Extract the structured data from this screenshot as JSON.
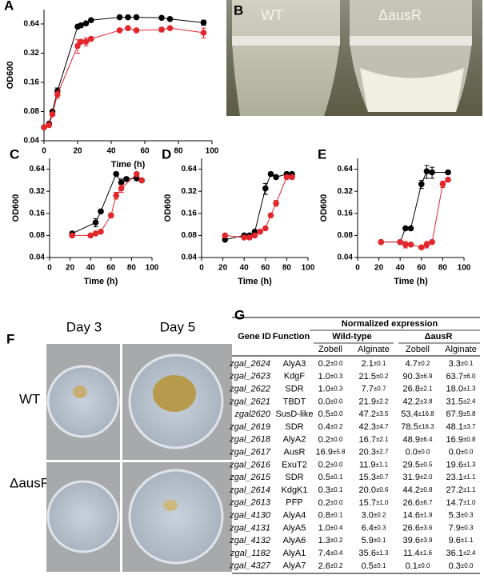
{
  "chart_data": [
    {
      "type": "line",
      "panel": "A",
      "xlabel": "Time (h)",
      "ylabel": "OD600",
      "xlim": [
        0,
        100
      ],
      "xticks": [
        0,
        20,
        40,
        60,
        80,
        100
      ],
      "ylim": [
        0.04,
        0.9
      ],
      "yticks": [
        0.04,
        0.08,
        0.16,
        0.32,
        0.64
      ],
      "yscale": "log",
      "series": [
        {
          "color": "#000000",
          "x": [
            0,
            3,
            5,
            8,
            20,
            22,
            25,
            28,
            45,
            50,
            55,
            70,
            75,
            95
          ],
          "values": [
            0.055,
            0.06,
            0.08,
            0.13,
            0.6,
            0.62,
            0.65,
            0.7,
            0.75,
            0.75,
            0.75,
            0.74,
            0.72,
            0.66
          ],
          "errors": [
            null,
            null,
            null,
            0.01,
            null,
            null,
            null,
            null,
            null,
            null,
            null,
            null,
            null,
            0.04
          ]
        },
        {
          "color": "#e3262b",
          "x": [
            0,
            3,
            5,
            8,
            20,
            22,
            25,
            28,
            45,
            50,
            55,
            70,
            75,
            95
          ],
          "values": [
            0.055,
            0.058,
            0.075,
            0.12,
            0.38,
            0.42,
            0.42,
            0.45,
            0.55,
            0.58,
            0.55,
            0.56,
            0.58,
            0.52
          ],
          "errors": [
            null,
            null,
            null,
            0.01,
            0.06,
            null,
            0.04,
            null,
            null,
            null,
            null,
            0.03,
            null,
            0.06
          ]
        }
      ]
    },
    {
      "type": "line",
      "panel": "C",
      "xlabel": "Time (h)",
      "ylabel": "OD600",
      "xlim": [
        0,
        100
      ],
      "xticks": [
        0,
        20,
        40,
        60,
        80,
        100
      ],
      "ylim": [
        0.04,
        0.9
      ],
      "yticks": [
        0.04,
        0.08,
        0.16,
        0.32,
        0.64
      ],
      "yscale": "log",
      "series": [
        {
          "color": "#000000",
          "x": [
            22,
            45,
            50,
            65,
            70,
            75,
            85,
            90
          ],
          "values": [
            0.085,
            0.12,
            0.17,
            0.55,
            0.42,
            0.47,
            0.48,
            0.45
          ],
          "errors": [
            null,
            0.015,
            null,
            null,
            0.05,
            null,
            null,
            null
          ]
        },
        {
          "color": "#e3262b",
          "x": [
            22,
            40,
            45,
            50,
            60,
            65,
            70,
            85,
            90
          ],
          "values": [
            0.08,
            0.08,
            0.085,
            0.09,
            0.15,
            0.28,
            0.35,
            0.55,
            0.45
          ],
          "errors": [
            null,
            null,
            null,
            null,
            0.01,
            0.03,
            0.04,
            null,
            null
          ]
        }
      ]
    },
    {
      "type": "line",
      "panel": "D",
      "xlabel": "Time (h)",
      "ylabel": "OD600",
      "xlim": [
        0,
        100
      ],
      "xticks": [
        0,
        20,
        40,
        60,
        80,
        100
      ],
      "ylim": [
        0.04,
        0.9
      ],
      "yticks": [
        0.04,
        0.08,
        0.16,
        0.32,
        0.64
      ],
      "yscale": "log",
      "series": [
        {
          "color": "#000000",
          "x": [
            22,
            40,
            45,
            50,
            60,
            65,
            70,
            80,
            85
          ],
          "values": [
            0.07,
            0.08,
            0.08,
            0.09,
            0.35,
            0.55,
            0.5,
            0.55,
            0.55
          ],
          "errors": [
            null,
            null,
            null,
            null,
            0.06,
            null,
            null,
            null,
            null
          ]
        },
        {
          "color": "#e3262b",
          "x": [
            22,
            40,
            45,
            50,
            55,
            60,
            65,
            70,
            80,
            85
          ],
          "values": [
            0.08,
            0.075,
            0.075,
            0.08,
            0.09,
            0.1,
            0.15,
            0.22,
            0.5,
            0.5
          ],
          "errors": [
            null,
            null,
            null,
            null,
            null,
            null,
            null,
            0.02,
            null,
            null
          ]
        }
      ]
    },
    {
      "type": "line",
      "panel": "E",
      "xlabel": "Time (h)",
      "ylabel": "OD600",
      "xlim": [
        0,
        100
      ],
      "xticks": [
        0,
        20,
        40,
        60,
        80,
        100
      ],
      "ylim": [
        0.04,
        0.9
      ],
      "yticks": [
        0.04,
        0.08,
        0.16,
        0.32,
        0.64
      ],
      "yscale": "log",
      "series": [
        {
          "color": "#000000",
          "x": [
            22,
            40,
            45,
            50,
            60,
            65,
            70,
            85
          ],
          "values": [
            0.065,
            0.065,
            0.1,
            0.1,
            0.4,
            0.6,
            0.58,
            0.58
          ],
          "errors": [
            null,
            null,
            null,
            null,
            0.05,
            0.12,
            0.1,
            null
          ]
        },
        {
          "color": "#e3262b",
          "x": [
            22,
            40,
            45,
            50,
            60,
            65,
            70,
            80,
            85
          ],
          "values": [
            0.065,
            0.065,
            0.06,
            0.06,
            0.055,
            0.06,
            0.065,
            0.4,
            0.46
          ],
          "errors": [
            null,
            null,
            0.006,
            null,
            null,
            0.006,
            null,
            0.04,
            null
          ]
        }
      ]
    }
  ],
  "photo_b": {
    "panel": "B",
    "labels": [
      "WT",
      "ΔausR"
    ]
  },
  "photo_f": {
    "panel": "F",
    "columns": [
      "Day 3",
      "Day 5"
    ],
    "rows": [
      "WT",
      "ΔausR"
    ]
  },
  "table": {
    "panel": "G",
    "title": "Normalized expression",
    "headers": [
      "Gene ID",
      "Function"
    ],
    "groups": [
      "Wild-type",
      "ΔausR"
    ],
    "subheaders": [
      "Zobell",
      "Alginate",
      "Zobell",
      "Alginate"
    ],
    "rows": [
      [
        "zgal_2624",
        "AlyA3",
        [
          "0.2",
          "±0.0"
        ],
        [
          "2.1",
          "±0.1"
        ],
        [
          "4.7",
          "±0.2"
        ],
        [
          "3.3",
          "±0.1"
        ]
      ],
      [
        "zgal_2623",
        "KdgF",
        [
          "1.0",
          "±0.3"
        ],
        [
          "21.5",
          "±0.2"
        ],
        [
          "90.3",
          "±6.9"
        ],
        [
          "63.7",
          "±6.0"
        ]
      ],
      [
        "zgal_2622",
        "SDR",
        [
          "1.0",
          "±0.3"
        ],
        [
          "7.7",
          "±0.7"
        ],
        [
          "26.8",
          "±2.1"
        ],
        [
          "18.0",
          "±1.3"
        ]
      ],
      [
        "zgal_2621",
        "TBDT",
        [
          "0.0",
          "±0.0"
        ],
        [
          "21.9",
          "±2.2"
        ],
        [
          "42.2",
          "±3.8"
        ],
        [
          "31.5",
          "±2.4"
        ]
      ],
      [
        "zgal2620",
        "SusD-like",
        [
          "0.5",
          "±0.0"
        ],
        [
          "47.2",
          "±3.5"
        ],
        [
          "53.4",
          "±16.8"
        ],
        [
          "67.9",
          "±5.8"
        ]
      ],
      [
        "zgal_2619",
        "SDR",
        [
          "0.4",
          "±0.2"
        ],
        [
          "42.3",
          "±4.7"
        ],
        [
          "78.5",
          "±16.3"
        ],
        [
          "48.1",
          "±3.7"
        ]
      ],
      [
        "zgal_2618",
        "AlyA2",
        [
          "0.2",
          "±0.0"
        ],
        [
          "16.7",
          "±2.1"
        ],
        [
          "48.9",
          "±6.4"
        ],
        [
          "16.9",
          "±0.8"
        ]
      ],
      [
        "zgal_2617",
        "AusR",
        [
          "16.9",
          "±5.8"
        ],
        [
          "20.3",
          "±2.7"
        ],
        [
          "0.0",
          "±0.0"
        ],
        [
          "0.0",
          "±0.0"
        ]
      ],
      [
        "zgal_2616",
        "ExuT2",
        [
          "0.2",
          "±0.0"
        ],
        [
          "11.9",
          "±1.1"
        ],
        [
          "29.5",
          "±0.5"
        ],
        [
          "19.6",
          "±1.3"
        ]
      ],
      [
        "zgal_2615",
        "SDR",
        [
          "0.5",
          "±0.1"
        ],
        [
          "15.3",
          "±0.7"
        ],
        [
          "31.9",
          "±2.0"
        ],
        [
          "23.1",
          "±1.1"
        ]
      ],
      [
        "zgal_2614",
        "KdgK1",
        [
          "0.3",
          "±0.1"
        ],
        [
          "20.0",
          "±0.6"
        ],
        [
          "44.2",
          "±0.8"
        ],
        [
          "27.2",
          "±1.1"
        ]
      ],
      [
        "zgal_2613",
        "PFP",
        [
          "0.2",
          "±0.0"
        ],
        [
          "15.7",
          "±1.0"
        ],
        [
          "26.6",
          "±6.7"
        ],
        [
          "14.7",
          "±1.0"
        ]
      ],
      [
        "zgal_4130",
        "AlyA4",
        [
          "0.8",
          "±0.1"
        ],
        [
          "3.0",
          "±0.2"
        ],
        [
          "14.6",
          "±1.9"
        ],
        [
          "5.3",
          "±0.3"
        ]
      ],
      [
        "zgal_4131",
        "AlyA5",
        [
          "1.0",
          "±0.4"
        ],
        [
          "6.4",
          "±0.3"
        ],
        [
          "26.6",
          "±3.6"
        ],
        [
          "7.9",
          "±0.3"
        ]
      ],
      [
        "zgal_4132",
        "AlyA6",
        [
          "1.3",
          "±0.2"
        ],
        [
          "5.9",
          "±0.1"
        ],
        [
          "39.6",
          "±3.9"
        ],
        [
          "9.6",
          "±1.1"
        ]
      ],
      [
        "zgal_1182",
        "AlyA1",
        [
          "7.4",
          "±0.4"
        ],
        [
          "35.6",
          "±1.3"
        ],
        [
          "11.4",
          "±1.6"
        ],
        [
          "36.1",
          "±2.4"
        ]
      ],
      [
        "zgal_4327",
        "AlyA7",
        [
          "2.6",
          "±0.2"
        ],
        [
          "0.5",
          "±0.1"
        ],
        [
          "0.1",
          "±0.0"
        ],
        [
          "0.3",
          "±0.0"
        ]
      ]
    ]
  }
}
